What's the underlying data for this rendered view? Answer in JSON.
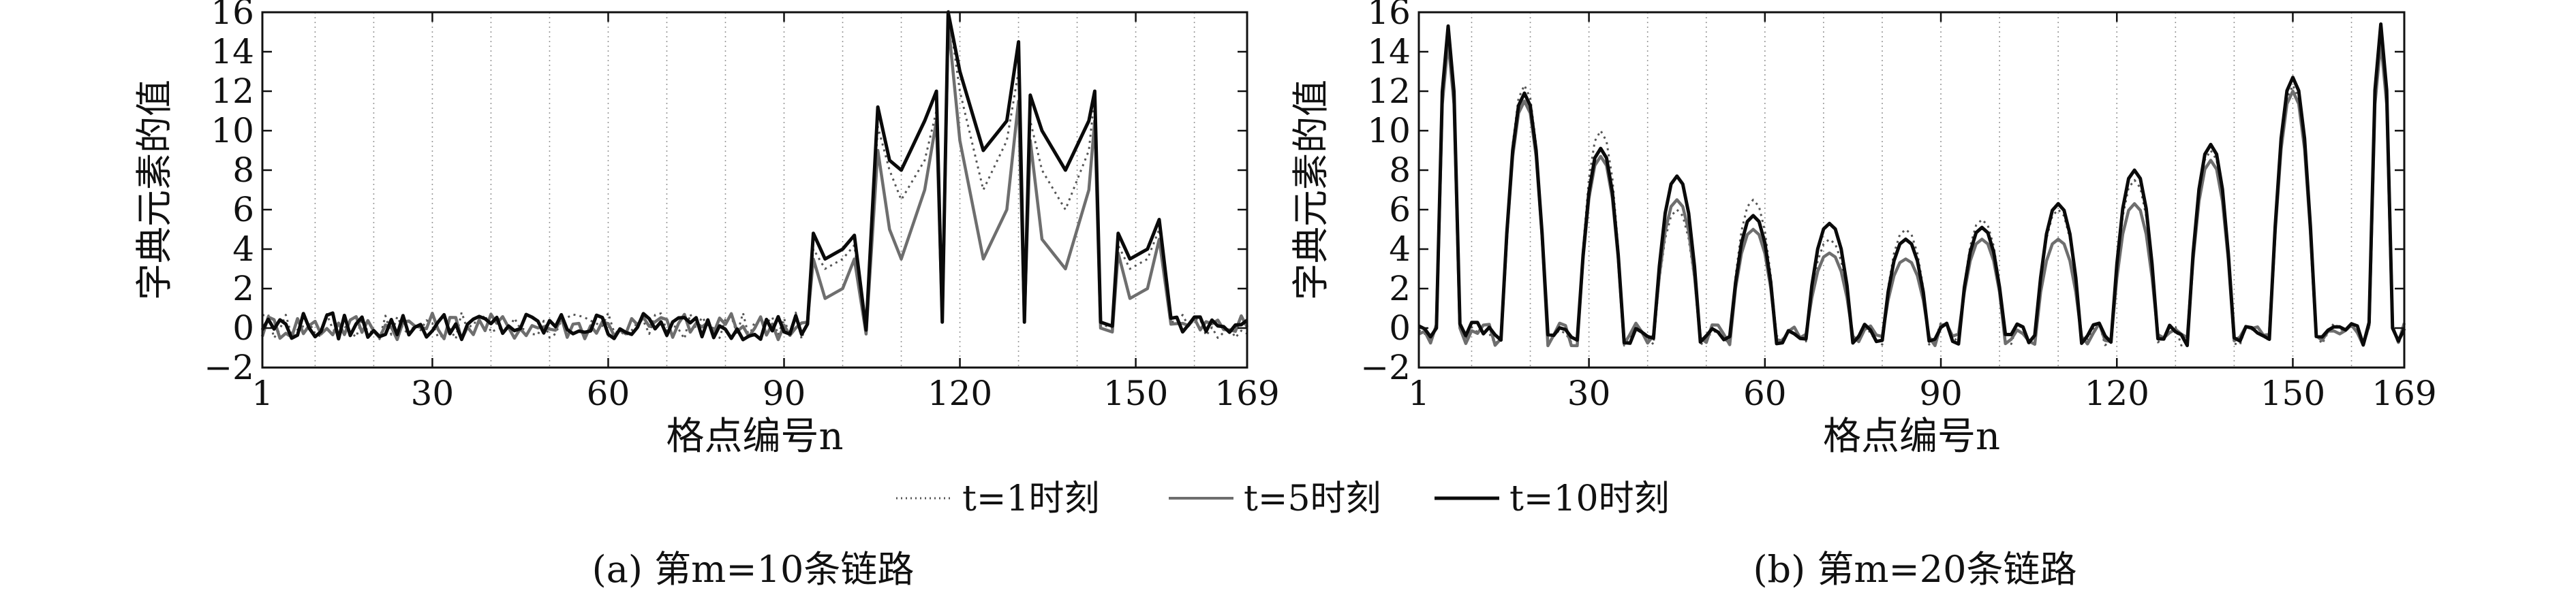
{
  "legend": {
    "items": [
      {
        "label": "t=1时刻",
        "style": "dotted",
        "color": "#555555"
      },
      {
        "label": "t=5时刻",
        "style": "solid",
        "color": "#6e6e6e"
      },
      {
        "label": "t=10时刻",
        "style": "solid",
        "color": "#0a0a0a"
      }
    ]
  },
  "chart_data": [
    {
      "type": "line",
      "caption": "(a) 第m=10条链路",
      "xlabel": "格点编号n",
      "ylabel": "字典元素的值",
      "xlim": [
        1,
        169
      ],
      "ylim": [
        -2,
        16
      ],
      "xticks": [
        1,
        30,
        60,
        90,
        120,
        150,
        169
      ],
      "yticks": [
        -2,
        0,
        2,
        4,
        6,
        8,
        10,
        12,
        14,
        16
      ],
      "vertical_grid": true,
      "grid_style": "dotted",
      "grid_x": [
        10,
        20,
        30,
        40,
        50,
        60,
        70,
        80,
        90,
        100,
        110,
        120,
        130,
        140,
        150,
        160
      ],
      "series": [
        {
          "name": "t=1时刻",
          "x": [
            1,
            10,
            20,
            30,
            40,
            50,
            60,
            70,
            80,
            90,
            94,
            95,
            97,
            100,
            102,
            104,
            106,
            108,
            110,
            114,
            116,
            117,
            118,
            120,
            124,
            128,
            130,
            131,
            132,
            134,
            138,
            142,
            143,
            144,
            146,
            147,
            149,
            152,
            154,
            156,
            160,
            165,
            169
          ],
          "y": [
            0,
            0.3,
            -0.2,
            0.2,
            -0.1,
            0.3,
            0,
            0.2,
            -0.1,
            0.3,
            0.5,
            4.0,
            3.0,
            3.5,
            4.2,
            -0.2,
            10.2,
            8.0,
            6.5,
            8.5,
            11.0,
            1.0,
            16.2,
            12.0,
            7.0,
            9.5,
            13.0,
            1.0,
            10.5,
            8.0,
            6.0,
            9.0,
            11.8,
            0.2,
            0.0,
            4.2,
            3.0,
            3.5,
            5.0,
            0.3,
            0.5,
            0.1,
            0.3
          ]
        },
        {
          "name": "t=5时刻",
          "x": [
            1,
            10,
            20,
            30,
            40,
            50,
            60,
            70,
            80,
            90,
            94,
            95,
            97,
            100,
            102,
            104,
            106,
            108,
            110,
            114,
            116,
            117,
            118,
            120,
            124,
            128,
            130,
            131,
            132,
            134,
            138,
            142,
            143,
            144,
            146,
            147,
            149,
            152,
            154,
            156,
            160,
            165,
            169
          ],
          "y": [
            0.2,
            0.4,
            0.0,
            0.3,
            0.2,
            0.1,
            0.3,
            0.0,
            0.2,
            0.2,
            0.3,
            3.5,
            1.5,
            2.0,
            3.5,
            -0.3,
            9.0,
            5.0,
            3.5,
            7.0,
            10.5,
            0.5,
            15.5,
            9.5,
            3.5,
            6.0,
            11.5,
            0.5,
            9.5,
            4.5,
            3.0,
            7.0,
            10.5,
            0.0,
            -0.2,
            3.8,
            1.5,
            2.0,
            4.5,
            0.2,
            0.3,
            0.4,
            0.2
          ]
        },
        {
          "name": "t=10时刻",
          "x": [
            1,
            10,
            20,
            30,
            40,
            50,
            60,
            70,
            80,
            90,
            94,
            95,
            97,
            100,
            102,
            104,
            106,
            108,
            110,
            114,
            116,
            117,
            118,
            120,
            124,
            128,
            130,
            131,
            132,
            134,
            138,
            142,
            143,
            144,
            146,
            147,
            149,
            152,
            154,
            156,
            160,
            165,
            169
          ],
          "y": [
            -0.3,
            0.6,
            -0.4,
            0.4,
            0.5,
            -0.5,
            0.3,
            0.4,
            -0.2,
            0.5,
            0.2,
            4.8,
            3.5,
            4.0,
            4.7,
            -0.1,
            11.2,
            8.5,
            8.0,
            10.5,
            12.0,
            0.3,
            16.0,
            13.0,
            9.0,
            10.5,
            14.5,
            0.3,
            11.8,
            10.0,
            8.0,
            10.5,
            12.0,
            0.3,
            0.1,
            4.8,
            3.5,
            4.0,
            5.5,
            0.5,
            0.7,
            -0.4,
            0.6
          ]
        }
      ]
    },
    {
      "type": "line",
      "caption": "(b) 第m=20条链路",
      "xlabel": "格点编号n",
      "ylabel": "字典元素的值",
      "xlim": [
        1,
        169
      ],
      "ylim": [
        -2,
        16
      ],
      "xticks": [
        1,
        30,
        60,
        90,
        120,
        150,
        169
      ],
      "yticks": [
        -2,
        0,
        2,
        4,
        6,
        8,
        10,
        12,
        14,
        16
      ],
      "vertical_grid": true,
      "grid_style": "dotted",
      "grid_x": [
        10,
        20,
        30,
        40,
        50,
        60,
        70,
        80,
        90,
        100,
        110,
        120,
        130,
        140,
        150,
        160
      ],
      "series": [
        {
          "name": "t=1时刻",
          "peaks": [
            [
              6,
              15.0
            ],
            [
              19,
              12.3
            ],
            [
              32,
              10.0
            ],
            [
              45,
              6.0
            ],
            [
              58,
              6.5
            ],
            [
              71,
              4.5
            ],
            [
              84,
              5.0
            ],
            [
              97,
              5.5
            ],
            [
              110,
              6.0
            ],
            [
              123,
              7.5
            ],
            [
              136,
              9.0
            ],
            [
              150,
              12.3
            ],
            [
              165,
              15.0
            ]
          ]
        },
        {
          "name": "t=5时刻",
          "peaks": [
            [
              6,
              14.5
            ],
            [
              19,
              11.5
            ],
            [
              32,
              8.7
            ],
            [
              45,
              6.5
            ],
            [
              58,
              5.0
            ],
            [
              71,
              3.8
            ],
            [
              84,
              3.5
            ],
            [
              97,
              4.5
            ],
            [
              110,
              4.5
            ],
            [
              123,
              6.3
            ],
            [
              136,
              8.5
            ],
            [
              150,
              12.0
            ],
            [
              165,
              14.5
            ]
          ]
        },
        {
          "name": "t=10时刻",
          "peaks": [
            [
              6,
              15.3
            ],
            [
              19,
              11.9
            ],
            [
              32,
              9.1
            ],
            [
              45,
              7.7
            ],
            [
              58,
              5.7
            ],
            [
              71,
              5.3
            ],
            [
              84,
              4.5
            ],
            [
              97,
              5.1
            ],
            [
              110,
              6.3
            ],
            [
              123,
              8.0
            ],
            [
              136,
              9.3
            ],
            [
              150,
              12.7
            ],
            [
              165,
              15.4
            ]
          ]
        }
      ]
    }
  ]
}
